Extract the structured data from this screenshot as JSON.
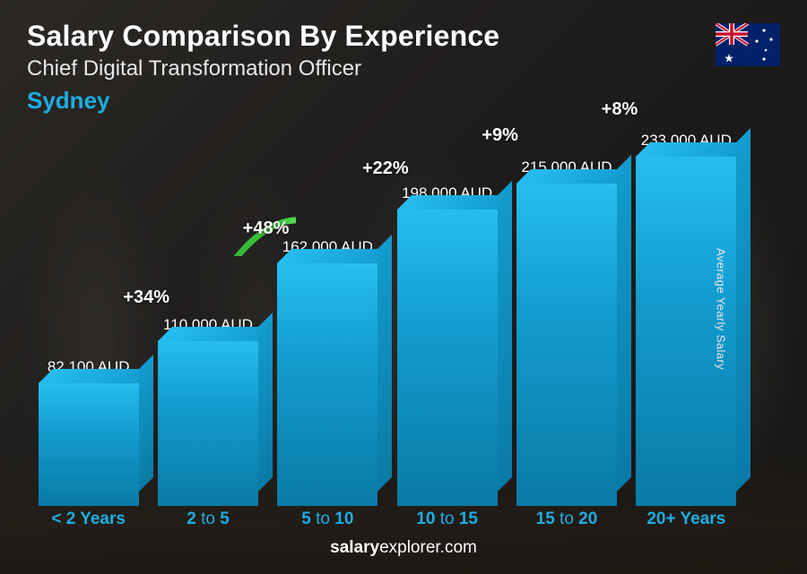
{
  "header": {
    "title": "Salary Comparison By Experience",
    "subtitle": "Chief Digital Transformation Officer",
    "city": "Sydney",
    "city_color": "#1daee3",
    "flag_country": "Australia"
  },
  "chart": {
    "type": "bar-3d",
    "currency": "AUD",
    "ylabel": "Average Yearly Salary",
    "bar_color": "#129ccf",
    "bar_color_light": "#27bdf0",
    "bar_color_dark": "#0a7aa5",
    "arc_color": "#3ec93e",
    "arc_stroke_width": 7,
    "value_text_color": "#ffffff",
    "xlabel_color": "#1daee3",
    "max_value": 233000,
    "categories": [
      {
        "label": "< 2 Years",
        "value": 82100,
        "display": "82,100 AUD"
      },
      {
        "label": "2 to 5",
        "value": 110000,
        "display": "110,000 AUD",
        "pct": "+34%"
      },
      {
        "label": "5 to 10",
        "value": 162000,
        "display": "162,000 AUD",
        "pct": "+48%"
      },
      {
        "label": "10 to 15",
        "value": 198000,
        "display": "198,000 AUD",
        "pct": "+22%"
      },
      {
        "label": "15 to 20",
        "value": 215000,
        "display": "215,000 AUD",
        "pct": "+9%"
      },
      {
        "label": "20+ Years",
        "value": 233000,
        "display": "233,000 AUD",
        "pct": "+8%"
      }
    ]
  },
  "footer": {
    "brand_bold": "salary",
    "brand_rest": "explorer.com"
  }
}
